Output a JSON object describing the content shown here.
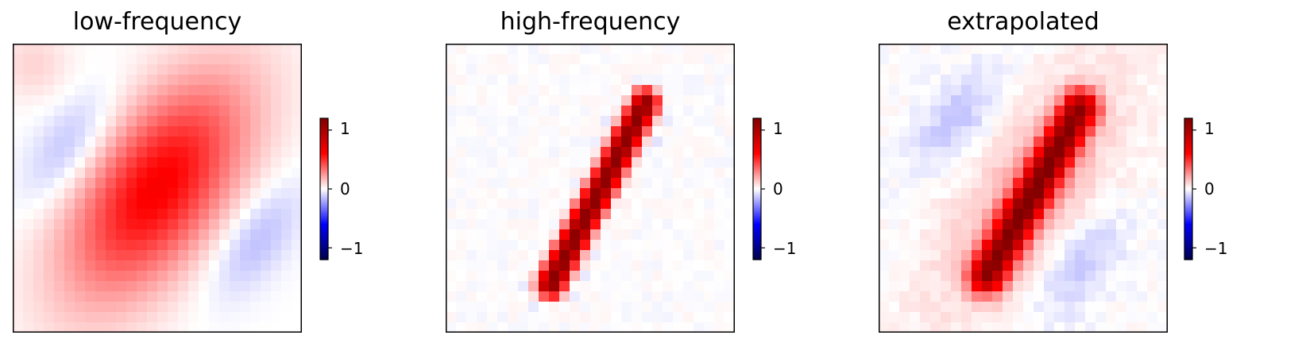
{
  "chart_data": [
    {
      "type": "heatmap",
      "title": "low-frequency",
      "grid_size": [
        28,
        28
      ],
      "colormap": "seismic",
      "colorbar": {
        "ticks": [
          1,
          0,
          -1
        ],
        "tick_labels": [
          "1",
          "0",
          "−1"
        ],
        "range": [
          -1.2,
          1.2
        ]
      },
      "xticks": false,
      "yticks": false,
      "pattern": "smooth broad red diagonal blob, faint blue lobes either side"
    },
    {
      "type": "heatmap",
      "title": "high-frequency",
      "grid_size": [
        28,
        28
      ],
      "colormap": "seismic",
      "colorbar": {
        "ticks": [
          1,
          0,
          -1
        ],
        "tick_labels": [
          "1",
          "0",
          "−1"
        ],
        "range": [
          -1.2,
          1.2
        ]
      },
      "xticks": false,
      "yticks": false,
      "pattern": "sharp dark-red diagonal stroke (digit one)"
    },
    {
      "type": "heatmap",
      "title": "extrapolated",
      "grid_size": [
        28,
        28
      ],
      "colormap": "seismic",
      "colorbar": {
        "ticks": [
          1,
          0,
          -1
        ],
        "tick_labels": [
          "1",
          "0",
          "−1"
        ],
        "range": [
          -1.2,
          1.2
        ]
      },
      "xticks": false,
      "yticks": false,
      "pattern": "red diagonal stroke with blurred halo and light blue regions"
    }
  ]
}
